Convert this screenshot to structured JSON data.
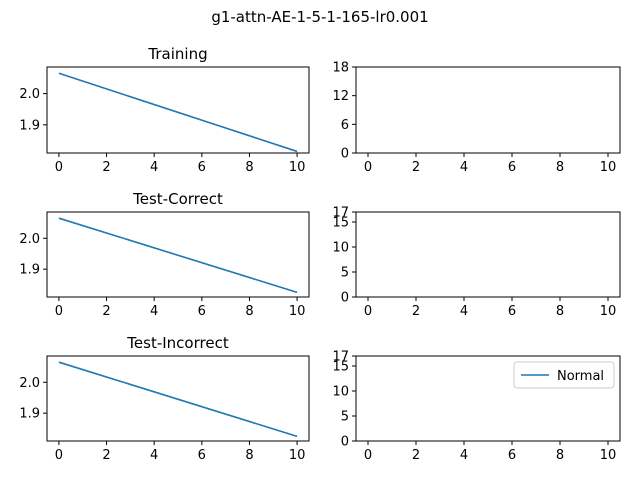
{
  "figure": {
    "suptitle": "g1-attn-AE-1-5-1-165-lr0.001"
  },
  "colors": {
    "series": "#1f77b4",
    "axis": "#000000",
    "background": "#ffffff"
  },
  "chart_data": [
    {
      "type": "line",
      "title": "Training",
      "xlabel": "",
      "ylabel": "",
      "xlim": [
        -0.5,
        10.5
      ],
      "ylim": [
        1.81,
        2.085
      ],
      "xticks": [
        0,
        2,
        4,
        6,
        8,
        10
      ],
      "yticks": [
        1.9,
        2.0
      ],
      "ytick_labels": [
        "1.9",
        "2.0"
      ],
      "grid": false,
      "series": [
        {
          "x": [
            0,
            10
          ],
          "y": [
            2.065,
            1.815
          ]
        }
      ]
    },
    {
      "type": "line",
      "title": "",
      "xlabel": "",
      "ylabel": "",
      "xlim": [
        -0.5,
        10.5
      ],
      "ylim": [
        0,
        18
      ],
      "xticks": [
        0,
        2,
        4,
        6,
        8,
        10
      ],
      "yticks": [
        0,
        6,
        12,
        18
      ],
      "ytick_labels": [
        "0",
        "6",
        "12",
        "18"
      ],
      "grid": false,
      "series": []
    },
    {
      "type": "line",
      "title": "Test-Correct",
      "xlabel": "",
      "ylabel": "",
      "xlim": [
        -0.5,
        10.5
      ],
      "ylim": [
        1.81,
        2.085
      ],
      "xticks": [
        0,
        2,
        4,
        6,
        8,
        10
      ],
      "yticks": [
        1.9,
        2.0
      ],
      "ytick_labels": [
        "1.9",
        "2.0"
      ],
      "grid": false,
      "series": [
        {
          "x": [
            0,
            10
          ],
          "y": [
            2.065,
            1.825
          ]
        }
      ]
    },
    {
      "type": "line",
      "title": "",
      "xlabel": "",
      "ylabel": "",
      "xlim": [
        -0.5,
        10.5
      ],
      "ylim": [
        0,
        17
      ],
      "xticks": [
        0,
        2,
        4,
        6,
        8,
        10
      ],
      "yticks": [
        0,
        5,
        10,
        15,
        17
      ],
      "ytick_labels": [
        "0",
        "5",
        "10",
        "15",
        "17"
      ],
      "grid": false,
      "series": []
    },
    {
      "type": "line",
      "title": "Test-Incorrect",
      "xlabel": "",
      "ylabel": "",
      "xlim": [
        -0.5,
        10.5
      ],
      "ylim": [
        1.81,
        2.085
      ],
      "xticks": [
        0,
        2,
        4,
        6,
        8,
        10
      ],
      "yticks": [
        1.9,
        2.0
      ],
      "ytick_labels": [
        "1.9",
        "2.0"
      ],
      "grid": false,
      "series": [
        {
          "x": [
            0,
            10
          ],
          "y": [
            2.065,
            1.825
          ]
        }
      ]
    },
    {
      "type": "line",
      "title": "",
      "xlabel": "",
      "ylabel": "",
      "xlim": [
        -0.5,
        10.5
      ],
      "ylim": [
        0,
        17
      ],
      "xticks": [
        0,
        2,
        4,
        6,
        8,
        10
      ],
      "yticks": [
        0,
        5,
        10,
        15,
        17
      ],
      "ytick_labels": [
        "0",
        "5",
        "10",
        "15",
        "17"
      ],
      "grid": false,
      "legend": {
        "entries": [
          "Normal"
        ],
        "placement": "upper-right"
      },
      "series": []
    }
  ]
}
